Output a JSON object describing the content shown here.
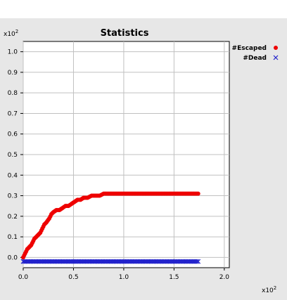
{
  "chart_data": {
    "type": "scatter",
    "title": "Statistics",
    "xlabel": "",
    "ylabel": "",
    "x_multiplier_label": "x10",
    "x_multiplier_exp": "2",
    "y_multiplier_label": "x10",
    "y_multiplier_exp": "2",
    "xlim": [
      0,
      2.05
    ],
    "ylim": [
      -0.05,
      1.05
    ],
    "x_ticks": [
      "0.0",
      "0.5",
      "1.0",
      "1.5",
      "2.0"
    ],
    "x_tick_values": [
      0.0,
      0.5,
      1.0,
      1.5,
      2.0
    ],
    "y_ticks": [
      "0.0",
      "0.1",
      "0.2",
      "0.3",
      "0.4",
      "0.5",
      "0.6",
      "0.7",
      "0.8",
      "0.9",
      "1.0"
    ],
    "y_tick_values": [
      0.0,
      0.1,
      0.2,
      0.3,
      0.4,
      0.5,
      0.6,
      0.7,
      0.8,
      0.9,
      1.0
    ],
    "grid": true,
    "legend_position": "right",
    "series": [
      {
        "name": "#Escaped",
        "marker": "circle",
        "color": "#ee0000",
        "points": [
          [
            0.0,
            0.0
          ],
          [
            0.01,
            0.01
          ],
          [
            0.02,
            0.02
          ],
          [
            0.03,
            0.03
          ],
          [
            0.04,
            0.04
          ],
          [
            0.06,
            0.05
          ],
          [
            0.08,
            0.06
          ],
          [
            0.1,
            0.08
          ],
          [
            0.11,
            0.09
          ],
          [
            0.13,
            0.1
          ],
          [
            0.15,
            0.11
          ],
          [
            0.17,
            0.12
          ],
          [
            0.19,
            0.14
          ],
          [
            0.21,
            0.16
          ],
          [
            0.23,
            0.17
          ],
          [
            0.26,
            0.19
          ],
          [
            0.28,
            0.21
          ],
          [
            0.3,
            0.22
          ],
          [
            0.33,
            0.23
          ],
          [
            0.36,
            0.23
          ],
          [
            0.39,
            0.24
          ],
          [
            0.42,
            0.25
          ],
          [
            0.45,
            0.25
          ],
          [
            0.48,
            0.26
          ],
          [
            0.51,
            0.27
          ],
          [
            0.54,
            0.28
          ],
          [
            0.57,
            0.28
          ],
          [
            0.6,
            0.29
          ],
          [
            0.64,
            0.29
          ],
          [
            0.68,
            0.3
          ],
          [
            0.72,
            0.3
          ],
          [
            0.76,
            0.3
          ],
          [
            0.8,
            0.31
          ],
          [
            0.85,
            0.31
          ],
          [
            0.9,
            0.31
          ],
          [
            1.0,
            0.31
          ],
          [
            1.1,
            0.31
          ],
          [
            1.2,
            0.31
          ],
          [
            1.3,
            0.31
          ],
          [
            1.4,
            0.31
          ],
          [
            1.5,
            0.31
          ],
          [
            1.6,
            0.31
          ],
          [
            1.7,
            0.31
          ],
          [
            1.74,
            0.31
          ]
        ]
      },
      {
        "name": "#Dead",
        "marker": "x",
        "color": "#2222cc",
        "points": [
          [
            0.0,
            -0.02
          ],
          [
            0.1,
            -0.02
          ],
          [
            0.2,
            -0.02
          ],
          [
            0.3,
            -0.02
          ],
          [
            0.4,
            -0.02
          ],
          [
            0.5,
            -0.02
          ],
          [
            0.6,
            -0.02
          ],
          [
            0.7,
            -0.02
          ],
          [
            0.8,
            -0.02
          ],
          [
            0.9,
            -0.02
          ],
          [
            1.0,
            -0.02
          ],
          [
            1.1,
            -0.02
          ],
          [
            1.2,
            -0.02
          ],
          [
            1.3,
            -0.02
          ],
          [
            1.4,
            -0.02
          ],
          [
            1.5,
            -0.02
          ],
          [
            1.6,
            -0.02
          ],
          [
            1.7,
            -0.02
          ],
          [
            1.74,
            -0.02
          ]
        ]
      }
    ]
  }
}
